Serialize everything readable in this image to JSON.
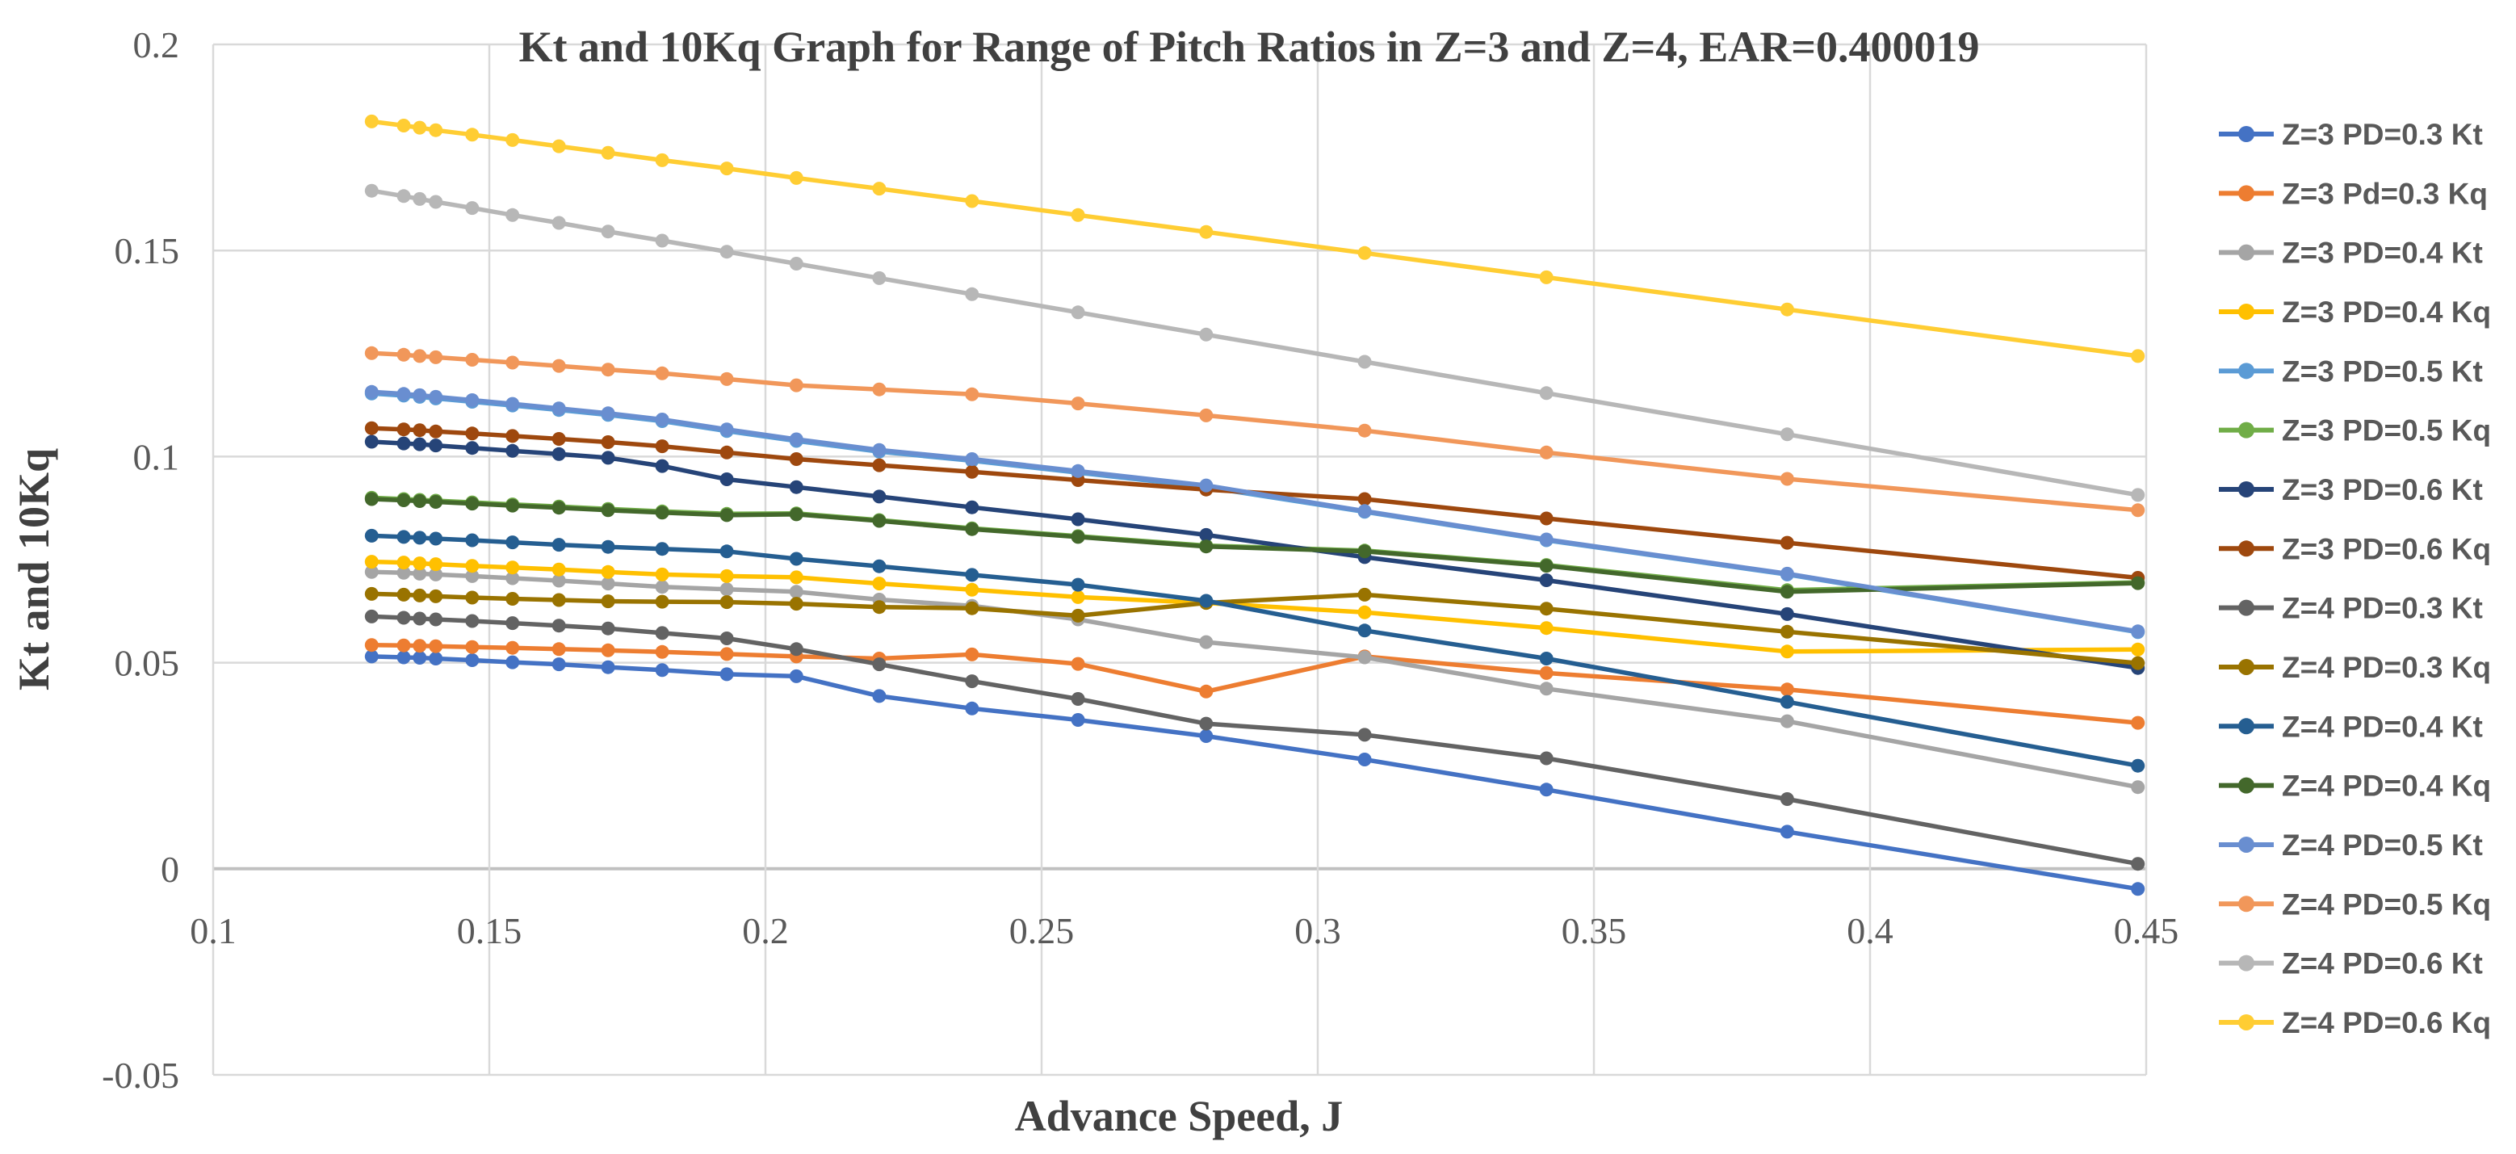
{
  "chart_data": {
    "type": "line",
    "title": "Kt and 10Kq Graph for Range of Pitch Ratios in Z=3 and Z=4, EAR=0.400019",
    "xlabel": "Advance Speed, J",
    "ylabel": "Kt and 10Kq",
    "xlim": [
      0.1,
      0.45
    ],
    "ylim": [
      -0.05,
      0.2
    ],
    "grid": true,
    "legend_position": "right",
    "x_ticks": [
      {
        "value": 0.1,
        "label": "0.1"
      },
      {
        "value": 0.15,
        "label": "0.15"
      },
      {
        "value": 0.2,
        "label": "0.2"
      },
      {
        "value": 0.25,
        "label": "0.25"
      },
      {
        "value": 0.3,
        "label": "0.3"
      },
      {
        "value": 0.35,
        "label": "0.35"
      },
      {
        "value": 0.4,
        "label": "0.4"
      },
      {
        "value": 0.45,
        "label": "0.45"
      }
    ],
    "y_ticks": [
      {
        "value": 0.2,
        "label": "0.2"
      },
      {
        "value": 0.15,
        "label": "0.15"
      },
      {
        "value": 0.1,
        "label": "0.1"
      },
      {
        "value": 0.05,
        "label": "0.05"
      },
      {
        "value": 0.0,
        "label": "0"
      },
      {
        "value": -0.05,
        "label": "-0.05"
      }
    ],
    "x": [
      0.1287,
      0.1345,
      0.1374,
      0.1403,
      0.1469,
      0.1542,
      0.1626,
      0.1715,
      0.1813,
      0.193,
      0.2056,
      0.2206,
      0.2374,
      0.2566,
      0.2798,
      0.3085,
      0.3414,
      0.385,
      0.4485
    ],
    "series": [
      {
        "name": "Z=3 PD=0.3 Kt",
        "color": "#4472C4",
        "values": [
          0.0515,
          0.0513,
          0.0512,
          0.051,
          0.0506,
          0.0501,
          0.0496,
          0.0489,
          0.0482,
          0.0472,
          0.0467,
          0.0419,
          0.0389,
          0.0361,
          0.0322,
          0.0265,
          0.0192,
          0.009,
          -0.0049
        ]
      },
      {
        "name": "Z=3 Pd=0.3 Kq",
        "color": "#ED7D31",
        "values": [
          0.0543,
          0.0542,
          0.0541,
          0.054,
          0.0538,
          0.0536,
          0.0533,
          0.053,
          0.0526,
          0.0521,
          0.0515,
          0.051,
          0.052,
          0.0497,
          0.043,
          0.0515,
          0.0475,
          0.0435,
          0.0354
        ]
      },
      {
        "name": "Z=3 PD=0.4 Kt",
        "color": "#A5A5A5",
        "values": [
          0.072,
          0.0718,
          0.0716,
          0.0714,
          0.071,
          0.0705,
          0.0699,
          0.0692,
          0.0684,
          0.0678,
          0.0672,
          0.0653,
          0.0638,
          0.0605,
          0.055,
          0.0513,
          0.0437,
          0.0358,
          0.0198
        ]
      },
      {
        "name": "Z=3 PD=0.4 Kq",
        "color": "#FFC000",
        "values": [
          0.0745,
          0.0743,
          0.0741,
          0.0739,
          0.0735,
          0.0731,
          0.0726,
          0.072,
          0.0714,
          0.071,
          0.0707,
          0.0692,
          0.0677,
          0.0659,
          0.0645,
          0.0622,
          0.0584,
          0.0527,
          0.0532
        ]
      },
      {
        "name": "Z=3 PD=0.5 Kt",
        "color": "#5B9BD5",
        "values": [
          0.1153,
          0.1148,
          0.1145,
          0.1141,
          0.1133,
          0.1124,
          0.1113,
          0.1101,
          0.1086,
          0.1062,
          0.1038,
          0.1012,
          0.099,
          0.0961,
          0.0926,
          0.0866,
          0.0797,
          0.0714,
          0.0574
        ]
      },
      {
        "name": "Z=3 PD=0.5 Kq",
        "color": "#70AD47",
        "values": [
          0.09,
          0.0897,
          0.0895,
          0.0893,
          0.0889,
          0.0884,
          0.0879,
          0.0873,
          0.0867,
          0.0861,
          0.0862,
          0.0846,
          0.0826,
          0.0807,
          0.0784,
          0.0772,
          0.0737,
          0.0676,
          0.0695
        ]
      },
      {
        "name": "Z=3 PD=0.6 Kt",
        "color": "#264478",
        "values": [
          0.1036,
          0.1032,
          0.103,
          0.1027,
          0.1021,
          0.1014,
          0.1006,
          0.0997,
          0.0977,
          0.0945,
          0.0926,
          0.0903,
          0.0877,
          0.0848,
          0.081,
          0.0756,
          0.07,
          0.0618,
          0.0487
        ]
      },
      {
        "name": "Z=3 PD=0.6 Kq",
        "color": "#9E480E",
        "values": [
          0.1069,
          0.1066,
          0.1064,
          0.1061,
          0.1056,
          0.105,
          0.1043,
          0.1035,
          0.1025,
          0.101,
          0.0994,
          0.0979,
          0.0963,
          0.0943,
          0.092,
          0.0897,
          0.085,
          0.0791,
          0.0706
        ]
      },
      {
        "name": "Z=4 PD=0.3 Kt",
        "color": "#636363",
        "values": [
          0.0612,
          0.0609,
          0.0607,
          0.0605,
          0.0601,
          0.0596,
          0.059,
          0.0583,
          0.0572,
          0.0559,
          0.0533,
          0.0496,
          0.0455,
          0.0412,
          0.0352,
          0.0325,
          0.0268,
          0.0169,
          0.0012
        ]
      },
      {
        "name": "Z=4 PD=0.3 Kq",
        "color": "#997300",
        "values": [
          0.0667,
          0.0665,
          0.0663,
          0.0661,
          0.0658,
          0.0655,
          0.0652,
          0.0649,
          0.0648,
          0.0647,
          0.0643,
          0.0635,
          0.0632,
          0.0614,
          0.0645,
          0.0665,
          0.0631,
          0.0575,
          0.0499
        ]
      },
      {
        "name": "Z=4 PD=0.4 Kt",
        "color": "#255E91",
        "values": [
          0.0808,
          0.0805,
          0.0803,
          0.0801,
          0.0797,
          0.0792,
          0.0786,
          0.0781,
          0.0776,
          0.077,
          0.0752,
          0.0734,
          0.0713,
          0.0689,
          0.065,
          0.0578,
          0.051,
          0.0405,
          0.025
        ]
      },
      {
        "name": "Z=4 PD=0.4 Kq",
        "color": "#43682B",
        "values": [
          0.0897,
          0.0894,
          0.0892,
          0.089,
          0.0886,
          0.0881,
          0.0876,
          0.087,
          0.0864,
          0.0858,
          0.086,
          0.0844,
          0.0824,
          0.0805,
          0.0782,
          0.077,
          0.0735,
          0.0672,
          0.0693
        ]
      },
      {
        "name": "Z=4 PD=0.5 Kt",
        "color": "#698ED0",
        "values": [
          0.1157,
          0.1152,
          0.1149,
          0.1145,
          0.1137,
          0.1128,
          0.1117,
          0.1105,
          0.109,
          0.1066,
          0.1042,
          0.1016,
          0.0994,
          0.0965,
          0.093,
          0.0868,
          0.0799,
          0.0716,
          0.0576
        ]
      },
      {
        "name": "Z=4 PD=0.5 Kq",
        "color": "#F1975A",
        "values": [
          0.1251,
          0.1247,
          0.1244,
          0.1241,
          0.1235,
          0.1228,
          0.122,
          0.1211,
          0.1202,
          0.1188,
          0.1173,
          0.1163,
          0.1151,
          0.1129,
          0.11,
          0.1063,
          0.101,
          0.0946,
          0.087
        ]
      },
      {
        "name": "Z=4 PD=0.6 Kt",
        "color": "#B7B7B7",
        "values": [
          0.1645,
          0.1632,
          0.1625,
          0.1618,
          0.1603,
          0.1586,
          0.1567,
          0.1546,
          0.1524,
          0.1497,
          0.1468,
          0.1433,
          0.1394,
          0.135,
          0.1296,
          0.123,
          0.1154,
          0.1054,
          0.0907
        ]
      },
      {
        "name": "Z=4 PD=0.6 Kq",
        "color": "#FFCD33",
        "values": [
          0.1813,
          0.1803,
          0.1798,
          0.1792,
          0.1781,
          0.1768,
          0.1753,
          0.1737,
          0.1719,
          0.1699,
          0.1676,
          0.165,
          0.162,
          0.1586,
          0.1545,
          0.1494,
          0.1435,
          0.1357,
          0.1244
        ]
      }
    ]
  },
  "colors": {
    "background": "#FFFFFF",
    "gridline": "#D9D9D9",
    "axis_line": "#C0C0C0",
    "tick_text": "#595959",
    "title_text": "#404040",
    "legend_text": "#595959"
  }
}
